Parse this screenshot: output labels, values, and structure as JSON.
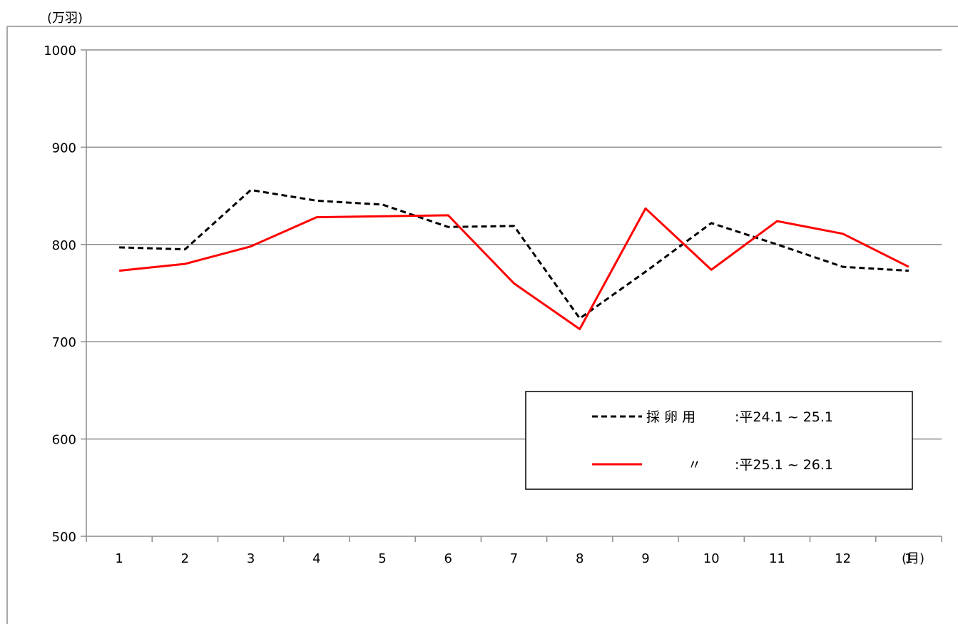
{
  "chart_data": {
    "type": "line",
    "y_unit_label": "(万羽)",
    "x_unit_label": "(月)",
    "categories": [
      "1",
      "2",
      "3",
      "4",
      "5",
      "6",
      "7",
      "8",
      "9",
      "10",
      "11",
      "12",
      "1"
    ],
    "ylim": [
      500,
      1000
    ],
    "yticks": [
      "500",
      "600",
      "700",
      "800",
      "900",
      "1000"
    ],
    "grid": true,
    "legend_position": "bottom-right",
    "series": [
      {
        "name": "採 卵 用 :平24.1 ~ 25.1",
        "legend_label": "採 卵 用",
        "legend_period": ":平24.1 ~ 25.1",
        "color": "#000000",
        "style": "dashed",
        "values": [
          797,
          795,
          856,
          845,
          841,
          818,
          819,
          724,
          772,
          822,
          800,
          777,
          773
        ]
      },
      {
        "name": "〃 :平25.1 ~ 26.1",
        "legend_label": "〃",
        "legend_period": ":平25.1 ~ 26.1",
        "color": "#ff0000",
        "style": "solid",
        "values": [
          773,
          780,
          798,
          828,
          829,
          830,
          760,
          713,
          837,
          774,
          824,
          811,
          777
        ]
      }
    ]
  }
}
